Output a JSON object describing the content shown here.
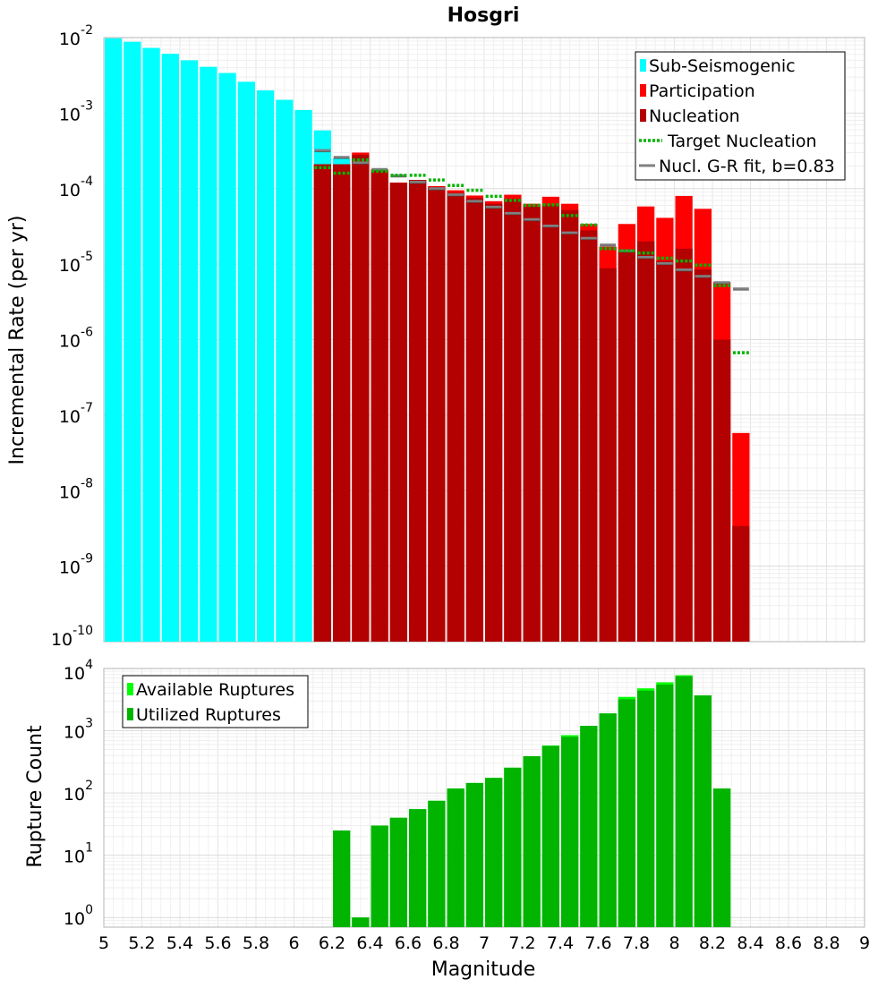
{
  "chart_data": [
    {
      "type": "bar",
      "title": "Hosgri",
      "xlabel": "Magnitude",
      "ylabel": "Incremental Rate (per yr)",
      "yscale": "log",
      "ylim": [
        1e-10,
        0.01
      ],
      "xlim": [
        5,
        9
      ],
      "legend_position": "top-right",
      "grid": true,
      "legend": [
        {
          "label": "Sub-Seismogenic",
          "style": "box",
          "color": "#00ffff"
        },
        {
          "label": "Participation",
          "style": "box",
          "color": "#ff0000"
        },
        {
          "label": "Nucleation",
          "style": "box",
          "color": "#b30000"
        },
        {
          "label": "Target Nucleation",
          "style": "dotted",
          "color": "#00b400"
        },
        {
          "label": "Nucl. G-R fit, b=0.83",
          "style": "line",
          "color": "#808080"
        }
      ],
      "series": [
        {
          "name": "Sub-Seismogenic",
          "color": "#00ffff",
          "x": [
            5.0,
            5.1,
            5.2,
            5.3,
            5.4,
            5.5,
            5.6,
            5.7,
            5.8,
            5.9,
            6.0,
            6.1,
            6.2
          ],
          "values": [
            0.0098,
            0.0088,
            0.0073,
            0.0061,
            0.005,
            0.0041,
            0.0034,
            0.0026,
            0.002,
            0.0015,
            0.0011,
            0.00059,
            0.00025
          ]
        },
        {
          "name": "Participation",
          "color": "#ff0000",
          "x": [
            6.15,
            6.25,
            6.35,
            6.45,
            6.55,
            6.65,
            6.75,
            6.85,
            6.95,
            7.05,
            7.15,
            7.25,
            7.35,
            7.45,
            7.55,
            7.65,
            7.75,
            7.85,
            7.95,
            8.05,
            8.15,
            8.25,
            8.35
          ],
          "values": [
            0.00021,
            0.00021,
            0.0003,
            0.00018,
            0.00012,
            0.00013,
            0.000108,
            9.5e-05,
            8.1e-05,
            6.8e-05,
            8.3e-05,
            6.3e-05,
            7.8e-05,
            6.3e-05,
            3.4e-05,
            1.7e-05,
            3.4e-05,
            5.8e-05,
            4.1e-05,
            8e-05,
            5.4e-05,
            5.8e-06,
            5.8e-08
          ]
        },
        {
          "name": "Nucleation",
          "color": "#b30000",
          "x": [
            6.15,
            6.25,
            6.35,
            6.45,
            6.55,
            6.65,
            6.75,
            6.85,
            6.95,
            7.05,
            7.15,
            7.25,
            7.35,
            7.45,
            7.55,
            7.65,
            7.75,
            7.85,
            7.95,
            8.05,
            8.15,
            8.25,
            8.35
          ],
          "values": [
            0.00021,
            0.00021,
            0.00028,
            0.00017,
            0.00012,
            0.00013,
            0.000105,
            8.8e-05,
            7.5e-05,
            6.3e-05,
            7.3e-05,
            5.8e-05,
            6e-05,
            5.2e-05,
            2.8e-05,
            8.8e-06,
            1.5e-05,
            2e-05,
            1.1e-05,
            1.6e-05,
            8.5e-06,
            1e-06,
            3.4e-09
          ]
        },
        {
          "name": "Target Nucleation",
          "color": "#00b400",
          "x": [
            6.15,
            6.25,
            6.35,
            6.45,
            6.55,
            6.65,
            6.75,
            6.85,
            6.95,
            7.05,
            7.15,
            7.25,
            7.35,
            7.45,
            7.55,
            7.65,
            7.75,
            7.85,
            7.95,
            8.05,
            8.15,
            8.25,
            8.35
          ],
          "values": [
            0.00019,
            0.00016,
            0.00024,
            0.00017,
            0.00015,
            0.00015,
            0.00013,
            0.00011,
            9.5e-05,
            7.9e-05,
            7e-05,
            6e-05,
            6.1e-05,
            4.4e-05,
            3.3e-05,
            1.6e-05,
            1.5e-05,
            1.4e-05,
            1.2e-05,
            1.1e-05,
            9.7e-06,
            5.2e-06,
            6.7e-07
          ]
        },
        {
          "name": "Nucl. G-R fit, b=0.83",
          "color": "#808080",
          "x": [
            6.15,
            6.25,
            6.35,
            6.45,
            6.55,
            6.65,
            6.75,
            6.85,
            6.95,
            7.05,
            7.15,
            7.25,
            7.35,
            7.45,
            7.55,
            7.65,
            7.75,
            7.85,
            7.95,
            8.05,
            8.15,
            8.25,
            8.35
          ],
          "values": [
            0.00032,
            0.00026,
            0.00022,
            0.00018,
            0.000148,
            0.000122,
            0.0001,
            8.3e-05,
            6.8e-05,
            5.7e-05,
            4.7e-05,
            3.9e-05,
            3.2e-05,
            2.6e-05,
            2.2e-05,
            1.8e-05,
            1.5e-05,
            1.23e-05,
            1.02e-05,
            8.4e-06,
            6.9e-06,
            5.7e-06,
            4.7e-06
          ]
        }
      ],
      "yticks": [
        {
          "base": "10",
          "exp": "-2"
        },
        {
          "base": "10",
          "exp": "-3"
        },
        {
          "base": "10",
          "exp": "-4"
        },
        {
          "base": "10",
          "exp": "-5"
        },
        {
          "base": "10",
          "exp": "-6"
        },
        {
          "base": "10",
          "exp": "-7"
        },
        {
          "base": "10",
          "exp": "-8"
        },
        {
          "base": "10",
          "exp": "-9"
        },
        {
          "base": "10",
          "exp": "-10"
        }
      ]
    },
    {
      "type": "bar",
      "title": "",
      "xlabel": "Magnitude",
      "ylabel": "Rupture Count",
      "yscale": "log",
      "ylim": [
        0.7,
        10000
      ],
      "xlim": [
        5,
        9
      ],
      "legend_position": "top-left",
      "grid": true,
      "legend": [
        {
          "label": "Available Ruptures",
          "style": "box",
          "color": "#00ff00"
        },
        {
          "label": "Utilized Ruptures",
          "style": "box",
          "color": "#00b400"
        }
      ],
      "series": [
        {
          "name": "Available Ruptures",
          "color": "#00ff00",
          "x": [
            6.25,
            6.35,
            6.45,
            6.55,
            6.65,
            6.75,
            6.85,
            6.95,
            7.05,
            7.15,
            7.25,
            7.35,
            7.45,
            7.55,
            7.65,
            7.75,
            7.85,
            7.95,
            8.05,
            8.15,
            8.25
          ],
          "values": [
            25,
            1,
            30,
            40,
            55,
            75,
            118,
            145,
            175,
            255,
            390,
            580,
            850,
            1200,
            1900,
            3500,
            4800,
            6000,
            7800,
            3700,
            118
          ]
        },
        {
          "name": "Utilized Ruptures",
          "color": "#00b400",
          "x": [
            6.25,
            6.35,
            6.45,
            6.55,
            6.65,
            6.75,
            6.85,
            6.95,
            7.05,
            7.15,
            7.25,
            7.35,
            7.45,
            7.55,
            7.65,
            7.75,
            7.85,
            7.95,
            8.05,
            8.15,
            8.25
          ],
          "values": [
            25,
            1,
            30,
            40,
            55,
            75,
            118,
            145,
            175,
            255,
            390,
            570,
            800,
            1200,
            1900,
            3200,
            4400,
            5500,
            7500,
            3700,
            118
          ]
        }
      ],
      "yticks": [
        {
          "base": "10",
          "exp": "4"
        },
        {
          "base": "10",
          "exp": "3"
        },
        {
          "base": "10",
          "exp": "2"
        },
        {
          "base": "10",
          "exp": "1"
        },
        {
          "base": "10",
          "exp": "0"
        }
      ],
      "xticks": [
        "5",
        "5.2",
        "5.4",
        "5.6",
        "5.8",
        "6",
        "6.2",
        "6.4",
        "6.6",
        "6.8",
        "7",
        "7.2",
        "7.4",
        "7.6",
        "7.8",
        "8",
        "8.2",
        "8.4",
        "8.6",
        "8.8",
        "9"
      ]
    }
  ]
}
